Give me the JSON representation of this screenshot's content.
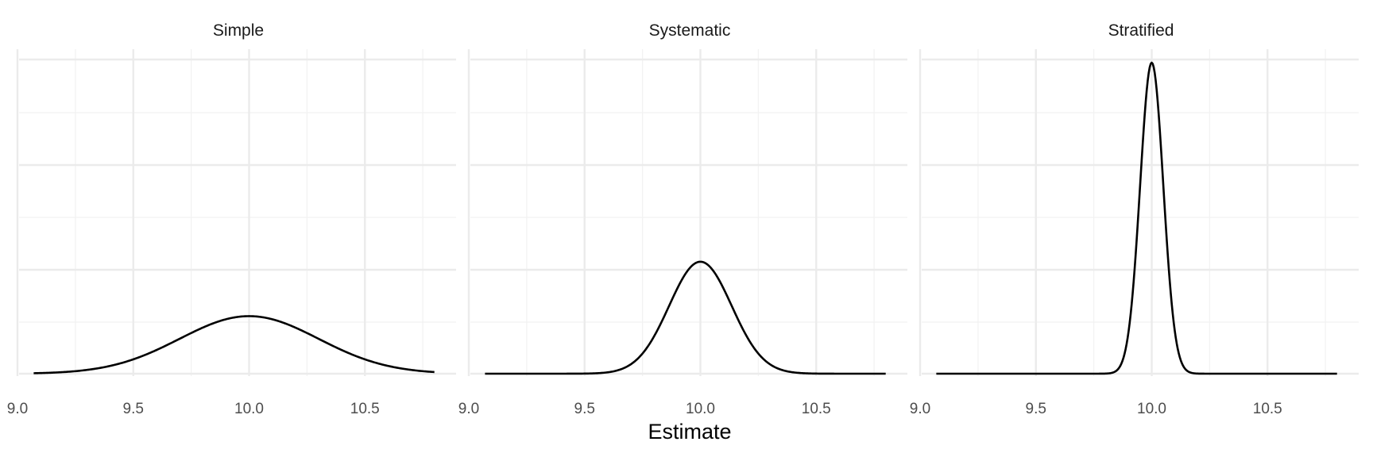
{
  "chart_data": {
    "type": "line",
    "facet_layout": "3 panels in one row, shared y axis without labels",
    "xlabel": "Estimate",
    "ylabel": "",
    "grid": true,
    "x_ticks": [
      "9.0",
      "9.5",
      "10.0",
      "10.5"
    ],
    "x_tick_values": [
      9.0,
      9.5,
      10.0,
      10.5
    ],
    "xlim": [
      9.0,
      10.82
    ],
    "panels": [
      {
        "title": "Simple",
        "curve": {
          "mean": 10.0,
          "sd": 0.3,
          "x_min": 9.07,
          "x_max": 10.8,
          "peak_fraction_of_max": 0.185
        },
        "x": [
          9.07,
          9.2,
          9.4,
          9.6,
          9.8,
          10.0,
          10.2,
          10.4,
          10.6,
          10.8
        ],
        "y": [
          0.012,
          0.03,
          0.07,
          0.12,
          0.162,
          0.185,
          0.163,
          0.12,
          0.07,
          0.017
        ]
      },
      {
        "title": "Systematic",
        "curve": {
          "mean": 10.0,
          "sd": 0.135,
          "x_min": 9.07,
          "x_max": 10.8,
          "peak_fraction_of_max": 0.36
        },
        "x": [
          9.07,
          9.5,
          9.7,
          9.8,
          9.9,
          10.0,
          10.1,
          10.2,
          10.3,
          10.5,
          10.8
        ],
        "y": [
          0.0,
          0.004,
          0.05,
          0.12,
          0.274,
          0.36,
          0.274,
          0.12,
          0.03,
          0.001,
          0.0
        ]
      },
      {
        "title": "Stratified",
        "curve": {
          "mean": 10.0,
          "sd": 0.05,
          "x_min": 9.07,
          "x_max": 10.8,
          "peak_fraction_of_max": 1.0
        },
        "x": [
          9.07,
          9.8,
          9.9,
          9.95,
          10.0,
          10.05,
          10.1,
          10.2,
          10.8
        ],
        "y": [
          0.0,
          0.0,
          0.135,
          0.606,
          1.0,
          0.606,
          0.135,
          0.0,
          0.0
        ]
      }
    ]
  }
}
